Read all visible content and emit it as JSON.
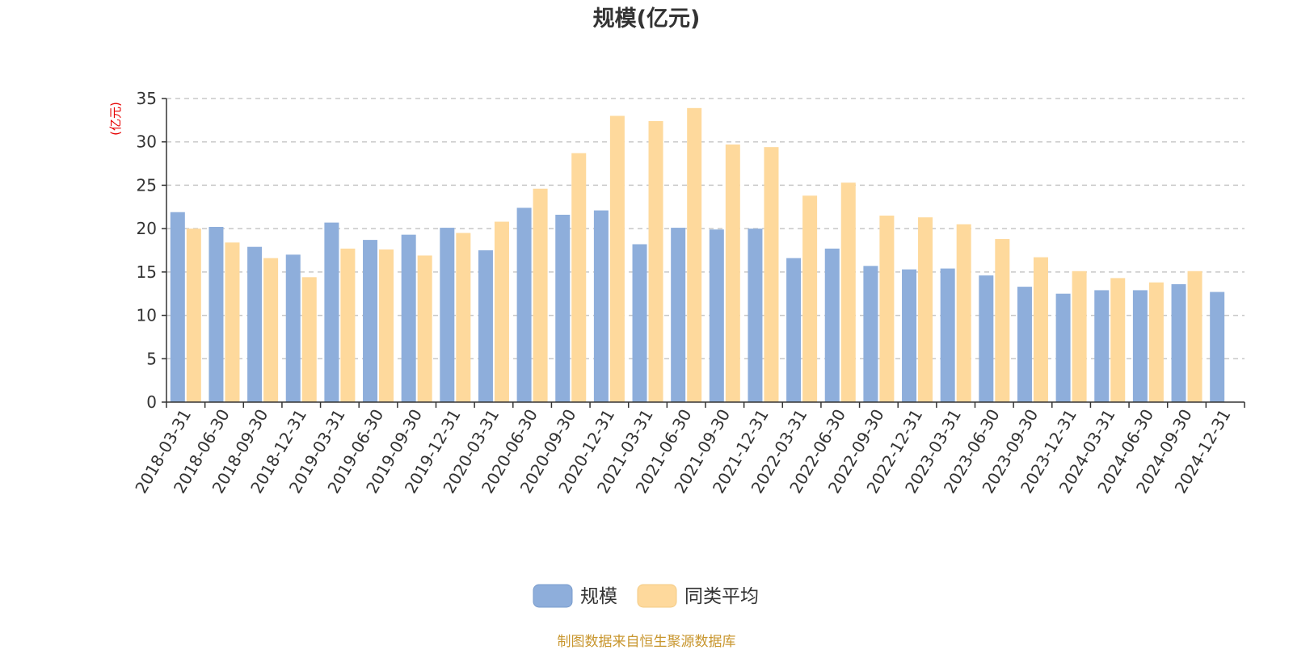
{
  "chart_data": {
    "type": "bar",
    "title": "规模(亿元)",
    "ylabel": "(亿元)",
    "ylim": [
      0,
      35
    ],
    "yticks": [
      0,
      5,
      10,
      15,
      20,
      25,
      30,
      35
    ],
    "grid": true,
    "legend_position": "bottom",
    "categories": [
      "2018-03-31",
      "2018-06-30",
      "2018-09-30",
      "2018-12-31",
      "2019-03-31",
      "2019-06-30",
      "2019-09-30",
      "2019-12-31",
      "2020-03-31",
      "2020-06-30",
      "2020-09-30",
      "2020-12-31",
      "2021-03-31",
      "2021-06-30",
      "2021-09-30",
      "2021-12-31",
      "2022-03-31",
      "2022-06-30",
      "2022-09-30",
      "2022-12-31",
      "2023-03-31",
      "2023-06-30",
      "2023-09-30",
      "2023-12-31",
      "2024-03-31",
      "2024-06-30",
      "2024-09-30",
      "2024-12-31"
    ],
    "series": [
      {
        "name": "规模",
        "color": "#8eaedb",
        "values": [
          21.9,
          20.2,
          17.9,
          17.0,
          20.7,
          18.7,
          19.3,
          20.1,
          17.5,
          22.4,
          21.6,
          22.1,
          18.2,
          20.1,
          19.9,
          20.0,
          16.6,
          17.7,
          15.7,
          15.3,
          15.4,
          14.6,
          13.3,
          12.5,
          12.9,
          12.9,
          13.6,
          12.7
        ]
      },
      {
        "name": "同类平均",
        "color": "#fed99c",
        "values": [
          20.0,
          18.4,
          16.6,
          14.4,
          17.7,
          17.6,
          16.9,
          19.5,
          20.8,
          24.6,
          28.7,
          33.0,
          32.4,
          33.9,
          29.7,
          29.4,
          23.8,
          25.3,
          21.5,
          21.3,
          20.5,
          18.8,
          16.7,
          15.1,
          14.3,
          13.8,
          15.1,
          null
        ]
      }
    ]
  },
  "footer": "制图数据来自恒生聚源数据库"
}
